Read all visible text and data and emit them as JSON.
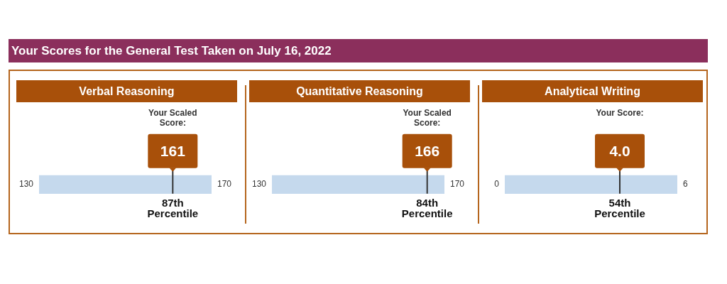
{
  "chart_data": [
    {
      "type": "other",
      "title": "Your Scores for the General Test Taken on July 16, 2022"
    },
    {
      "type": "other",
      "title": "Verbal Reasoning",
      "values": [
        161
      ],
      "data_labels": true,
      "color": "#a8500a",
      "annotations": [
        "130",
        "170",
        "Your Scaled Score:",
        "87th Percentile"
      ]
    },
    {
      "type": "other",
      "title": "Quantitative Reasoning",
      "values": [
        166
      ],
      "data_labels": true,
      "color": "#a8500a",
      "annotations": [
        "130",
        "170",
        "Your Scaled Score:",
        "84th Percentile"
      ]
    },
    {
      "type": "other",
      "title": "Analytical Writing",
      "values": [
        4
      ],
      "value_labels": [
        "4.0"
      ],
      "color": "#a8500a",
      "annotations": [
        "0",
        "6",
        "Your Score:",
        "54th Percentile"
      ]
    }
  ]
}
